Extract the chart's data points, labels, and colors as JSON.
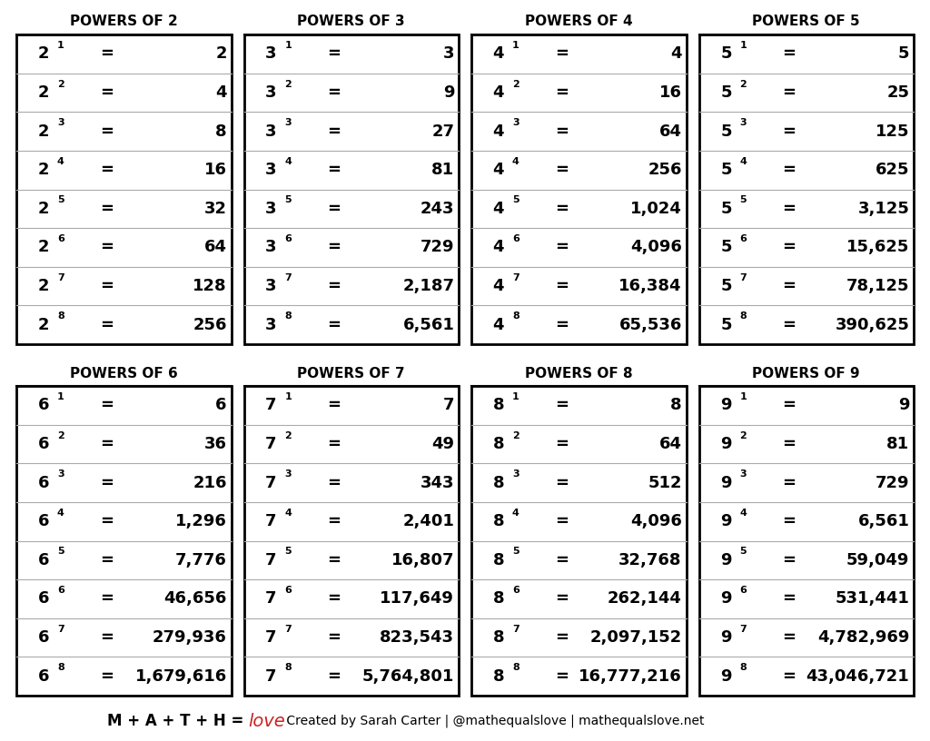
{
  "tables": [
    {
      "title": "POWERS OF 2",
      "base": 2,
      "rows": [
        {
          "exp": 1,
          "val": "2"
        },
        {
          "exp": 2,
          "val": "4"
        },
        {
          "exp": 3,
          "val": "8"
        },
        {
          "exp": 4,
          "val": "16"
        },
        {
          "exp": 5,
          "val": "32"
        },
        {
          "exp": 6,
          "val": "64"
        },
        {
          "exp": 7,
          "val": "128"
        },
        {
          "exp": 8,
          "val": "256"
        }
      ],
      "col": 0,
      "row": 0
    },
    {
      "title": "POWERS OF 3",
      "base": 3,
      "rows": [
        {
          "exp": 1,
          "val": "3"
        },
        {
          "exp": 2,
          "val": "9"
        },
        {
          "exp": 3,
          "val": "27"
        },
        {
          "exp": 4,
          "val": "81"
        },
        {
          "exp": 5,
          "val": "243"
        },
        {
          "exp": 6,
          "val": "729"
        },
        {
          "exp": 7,
          "val": "2,187"
        },
        {
          "exp": 8,
          "val": "6,561"
        }
      ],
      "col": 1,
      "row": 0
    },
    {
      "title": "POWERS OF 4",
      "base": 4,
      "rows": [
        {
          "exp": 1,
          "val": "4"
        },
        {
          "exp": 2,
          "val": "16"
        },
        {
          "exp": 3,
          "val": "64"
        },
        {
          "exp": 4,
          "val": "256"
        },
        {
          "exp": 5,
          "val": "1,024"
        },
        {
          "exp": 6,
          "val": "4,096"
        },
        {
          "exp": 7,
          "val": "16,384"
        },
        {
          "exp": 8,
          "val": "65,536"
        }
      ],
      "col": 2,
      "row": 0
    },
    {
      "title": "POWERS OF 5",
      "base": 5,
      "rows": [
        {
          "exp": 1,
          "val": "5"
        },
        {
          "exp": 2,
          "val": "25"
        },
        {
          "exp": 3,
          "val": "125"
        },
        {
          "exp": 4,
          "val": "625"
        },
        {
          "exp": 5,
          "val": "3,125"
        },
        {
          "exp": 6,
          "val": "15,625"
        },
        {
          "exp": 7,
          "val": "78,125"
        },
        {
          "exp": 8,
          "val": "390,625"
        }
      ],
      "col": 3,
      "row": 0
    },
    {
      "title": "POWERS OF 6",
      "base": 6,
      "rows": [
        {
          "exp": 1,
          "val": "6"
        },
        {
          "exp": 2,
          "val": "36"
        },
        {
          "exp": 3,
          "val": "216"
        },
        {
          "exp": 4,
          "val": "1,296"
        },
        {
          "exp": 5,
          "val": "7,776"
        },
        {
          "exp": 6,
          "val": "46,656"
        },
        {
          "exp": 7,
          "val": "279,936"
        },
        {
          "exp": 8,
          "val": "1,679,616"
        }
      ],
      "col": 0,
      "row": 1
    },
    {
      "title": "POWERS OF 7",
      "base": 7,
      "rows": [
        {
          "exp": 1,
          "val": "7"
        },
        {
          "exp": 2,
          "val": "49"
        },
        {
          "exp": 3,
          "val": "343"
        },
        {
          "exp": 4,
          "val": "2,401"
        },
        {
          "exp": 5,
          "val": "16,807"
        },
        {
          "exp": 6,
          "val": "117,649"
        },
        {
          "exp": 7,
          "val": "823,543"
        },
        {
          "exp": 8,
          "val": "5,764,801"
        }
      ],
      "col": 1,
      "row": 1
    },
    {
      "title": "POWERS OF 8",
      "base": 8,
      "rows": [
        {
          "exp": 1,
          "val": "8"
        },
        {
          "exp": 2,
          "val": "64"
        },
        {
          "exp": 3,
          "val": "512"
        },
        {
          "exp": 4,
          "val": "4,096"
        },
        {
          "exp": 5,
          "val": "32,768"
        },
        {
          "exp": 6,
          "val": "262,144"
        },
        {
          "exp": 7,
          "val": "2,097,152"
        },
        {
          "exp": 8,
          "val": "16,777,216"
        }
      ],
      "col": 2,
      "row": 1
    },
    {
      "title": "POWERS OF 9",
      "base": 9,
      "rows": [
        {
          "exp": 1,
          "val": "9"
        },
        {
          "exp": 2,
          "val": "81"
        },
        {
          "exp": 3,
          "val": "729"
        },
        {
          "exp": 4,
          "val": "6,561"
        },
        {
          "exp": 5,
          "val": "59,049"
        },
        {
          "exp": 6,
          "val": "531,441"
        },
        {
          "exp": 7,
          "val": "4,782,969"
        },
        {
          "exp": 8,
          "val": "43,046,721"
        }
      ],
      "col": 3,
      "row": 1
    }
  ],
  "background_color": "#ffffff",
  "border_color": "#000000",
  "text_color": "#000000",
  "title_color": "#000000",
  "line_color": "#aaaaaa",
  "footer_black": "M + A + T + H = ",
  "footer_love_color": "#cc2222",
  "footer_creator": " Created by Sarah Carter | @mathequalslove | mathequalslove.net"
}
